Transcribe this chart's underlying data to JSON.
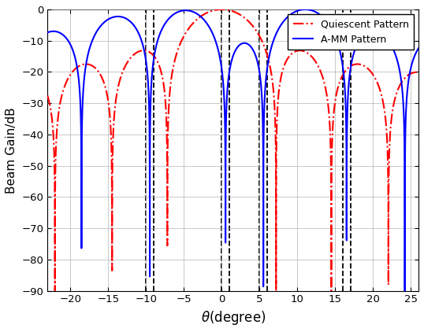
{
  "xlim": [
    -23,
    26
  ],
  "ylim": [
    -90,
    0
  ],
  "xticks": [
    -20,
    -15,
    -10,
    -5,
    0,
    5,
    10,
    15,
    20,
    25
  ],
  "yticks": [
    0,
    -10,
    -20,
    -30,
    -40,
    -50,
    -60,
    -70,
    -80,
    -90
  ],
  "xlabel": "$\\theta$(degree)",
  "ylabel": "Beam Gain/dB",
  "vlines": [
    -10,
    -9,
    0,
    1,
    5,
    6,
    16,
    17
  ],
  "legend": [
    "Quiescent Pattern",
    "A-MM Pattern"
  ],
  "quiescent_color": "#FF0000",
  "amm_color": "#0000FF",
  "background_color": "#FFFFFF",
  "grid_color": "#B0B0B0"
}
